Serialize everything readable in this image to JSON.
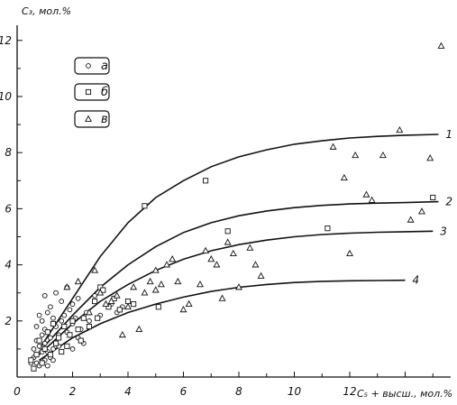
{
  "chart_data": {
    "type": "scatter",
    "ylabel": "C₃, мол.%",
    "xlabel": "C₅ + высш., мол.%",
    "xlim": [
      0,
      15.5
    ],
    "ylim": [
      0,
      13
    ],
    "x_ticks": [
      0,
      2,
      4,
      6,
      8,
      10,
      12
    ],
    "x_tick_labels": [
      "0",
      "2",
      "4",
      "6",
      "8",
      "10",
      "12"
    ],
    "y_ticks": [
      2,
      4,
      6,
      8,
      10,
      12
    ],
    "y_tick_labels": [
      "2",
      "4",
      "6",
      "8",
      "10",
      "12"
    ],
    "x_minor_step": 1,
    "y_minor_step": 1,
    "grid": false,
    "legend": [
      {
        "label": "а",
        "marker": "circle"
      },
      {
        "label": "б",
        "marker": "square"
      },
      {
        "label": "в",
        "marker": "triangle"
      }
    ],
    "legend_position": "top-left",
    "series": [
      {
        "marker": "circle",
        "points": [
          [
            0.5,
            0.5
          ],
          [
            0.6,
            0.7
          ],
          [
            0.7,
            0.5
          ],
          [
            0.8,
            0.4
          ],
          [
            0.9,
            0.9
          ],
          [
            1.0,
            0.6
          ],
          [
            1.1,
            0.4
          ],
          [
            1.2,
            0.7
          ],
          [
            0.6,
            1.0
          ],
          [
            0.7,
            1.3
          ],
          [
            0.8,
            1.1
          ],
          [
            0.9,
            1.5
          ],
          [
            1.0,
            1.2
          ],
          [
            1.1,
            0.9
          ],
          [
            1.2,
            1.4
          ],
          [
            1.3,
            1.0
          ],
          [
            0.7,
            1.8
          ],
          [
            0.9,
            2.0
          ],
          [
            1.0,
            1.7
          ],
          [
            1.1,
            2.3
          ],
          [
            1.3,
            2.1
          ],
          [
            1.4,
            1.8
          ],
          [
            1.5,
            1.5
          ],
          [
            1.6,
            2.0
          ],
          [
            1.7,
            2.2
          ],
          [
            1.8,
            1.6
          ],
          [
            1.9,
            2.4
          ],
          [
            2.0,
            1.9
          ],
          [
            2.1,
            2.1
          ],
          [
            2.2,
            1.4
          ],
          [
            2.3,
            1.7
          ],
          [
            2.4,
            1.2
          ],
          [
            2.5,
            2.3
          ],
          [
            1.2,
            2.5
          ],
          [
            1.4,
            3.0
          ],
          [
            1.6,
            2.7
          ],
          [
            1.8,
            3.2
          ],
          [
            1.0,
            2.9
          ],
          [
            2.0,
            2.6
          ],
          [
            2.6,
            2.0
          ],
          [
            2.8,
            2.9
          ],
          [
            3.0,
            2.2
          ],
          [
            3.4,
            2.6
          ],
          [
            3.6,
            2.3
          ],
          [
            3.8,
            2.5
          ],
          [
            1.5,
            1.1
          ],
          [
            2.0,
            1.0
          ],
          [
            1.3,
            0.6
          ],
          [
            0.8,
            2.2
          ],
          [
            2.2,
            2.8
          ]
        ]
      },
      {
        "marker": "square",
        "points": [
          [
            0.5,
            0.6
          ],
          [
            0.7,
            0.8
          ],
          [
            0.9,
            0.5
          ],
          [
            1.0,
            1.0
          ],
          [
            1.2,
            0.8
          ],
          [
            1.4,
            1.2
          ],
          [
            0.8,
            1.3
          ],
          [
            1.1,
            1.6
          ],
          [
            1.3,
            1.9
          ],
          [
            1.5,
            1.4
          ],
          [
            1.7,
            1.8
          ],
          [
            1.9,
            1.5
          ],
          [
            2.0,
            2.0
          ],
          [
            2.2,
            1.7
          ],
          [
            2.4,
            2.1
          ],
          [
            2.6,
            1.8
          ],
          [
            2.8,
            2.7
          ],
          [
            3.0,
            3.2
          ],
          [
            3.1,
            3.1
          ],
          [
            3.3,
            2.5
          ],
          [
            3.5,
            2.8
          ],
          [
            3.7,
            2.4
          ],
          [
            4.0,
            2.7
          ],
          [
            4.2,
            2.6
          ],
          [
            5.1,
            2.5
          ],
          [
            4.6,
            6.1
          ],
          [
            6.8,
            7.0
          ],
          [
            7.6,
            5.2
          ],
          [
            11.2,
            5.3
          ],
          [
            15.0,
            6.4
          ],
          [
            2.9,
            2.1
          ],
          [
            1.8,
            1.1
          ],
          [
            1.6,
            0.9
          ],
          [
            2.3,
            1.3
          ],
          [
            0.6,
            0.3
          ]
        ]
      },
      {
        "marker": "triangle",
        "points": [
          [
            1.8,
            3.2
          ],
          [
            2.2,
            3.4
          ],
          [
            2.8,
            3.8
          ],
          [
            3.0,
            3.0
          ],
          [
            3.2,
            2.6
          ],
          [
            3.4,
            2.7
          ],
          [
            3.6,
            2.9
          ],
          [
            3.8,
            1.5
          ],
          [
            4.0,
            2.5
          ],
          [
            4.2,
            3.2
          ],
          [
            4.4,
            1.7
          ],
          [
            4.6,
            3.0
          ],
          [
            4.8,
            3.4
          ],
          [
            5.0,
            3.1
          ],
          [
            5.2,
            3.3
          ],
          [
            5.4,
            4.0
          ],
          [
            5.6,
            4.2
          ],
          [
            5.8,
            3.4
          ],
          [
            6.0,
            2.4
          ],
          [
            6.2,
            2.6
          ],
          [
            6.6,
            3.3
          ],
          [
            6.8,
            4.5
          ],
          [
            7.0,
            4.2
          ],
          [
            7.2,
            4.0
          ],
          [
            7.4,
            2.8
          ],
          [
            7.6,
            4.8
          ],
          [
            7.8,
            4.4
          ],
          [
            8.0,
            3.2
          ],
          [
            8.4,
            4.6
          ],
          [
            8.6,
            4.0
          ],
          [
            8.8,
            3.6
          ],
          [
            11.4,
            8.2
          ],
          [
            11.8,
            7.1
          ],
          [
            12.2,
            7.9
          ],
          [
            12.6,
            6.5
          ],
          [
            12.8,
            6.3
          ],
          [
            13.2,
            7.9
          ],
          [
            13.8,
            8.8
          ],
          [
            14.2,
            5.6
          ],
          [
            14.6,
            5.9
          ],
          [
            14.9,
            7.8
          ],
          [
            15.3,
            11.8
          ],
          [
            12.0,
            4.4
          ],
          [
            2.6,
            2.3
          ],
          [
            5.0,
            3.8
          ]
        ]
      }
    ],
    "curves": [
      {
        "label": "1",
        "points": [
          [
            0.8,
            1.0
          ],
          [
            2,
            2.8
          ],
          [
            3,
            4.3
          ],
          [
            4,
            5.5
          ],
          [
            5,
            6.4
          ],
          [
            6,
            7.0
          ],
          [
            7,
            7.5
          ],
          [
            8,
            7.85
          ],
          [
            9,
            8.1
          ],
          [
            10,
            8.3
          ],
          [
            11,
            8.42
          ],
          [
            12,
            8.52
          ],
          [
            13,
            8.58
          ],
          [
            14,
            8.62
          ],
          [
            15.2,
            8.65
          ]
        ]
      },
      {
        "label": "2",
        "points": [
          [
            0.8,
            0.9
          ],
          [
            2,
            2.2
          ],
          [
            3,
            3.2
          ],
          [
            4,
            4.0
          ],
          [
            5,
            4.65
          ],
          [
            6,
            5.15
          ],
          [
            7,
            5.5
          ],
          [
            8,
            5.75
          ],
          [
            9,
            5.92
          ],
          [
            10,
            6.04
          ],
          [
            11,
            6.12
          ],
          [
            12,
            6.17
          ],
          [
            13,
            6.2
          ],
          [
            14,
            6.22
          ],
          [
            15.2,
            6.25
          ]
        ]
      },
      {
        "label": "3",
        "points": [
          [
            0.8,
            0.8
          ],
          [
            2,
            1.9
          ],
          [
            3,
            2.7
          ],
          [
            4,
            3.3
          ],
          [
            5,
            3.8
          ],
          [
            6,
            4.2
          ],
          [
            7,
            4.5
          ],
          [
            8,
            4.72
          ],
          [
            9,
            4.88
          ],
          [
            10,
            5.0
          ],
          [
            11,
            5.08
          ],
          [
            12,
            5.13
          ],
          [
            13,
            5.16
          ],
          [
            14,
            5.18
          ],
          [
            15.0,
            5.2
          ]
        ]
      },
      {
        "label": "4",
        "points": [
          [
            0.8,
            0.6
          ],
          [
            2,
            1.4
          ],
          [
            3,
            1.9
          ],
          [
            4,
            2.3
          ],
          [
            5,
            2.6
          ],
          [
            6,
            2.85
          ],
          [
            7,
            3.05
          ],
          [
            8,
            3.2
          ],
          [
            9,
            3.3
          ],
          [
            10,
            3.37
          ],
          [
            11,
            3.41
          ],
          [
            12,
            3.43
          ],
          [
            13,
            3.44
          ],
          [
            14,
            3.45
          ]
        ]
      }
    ]
  }
}
